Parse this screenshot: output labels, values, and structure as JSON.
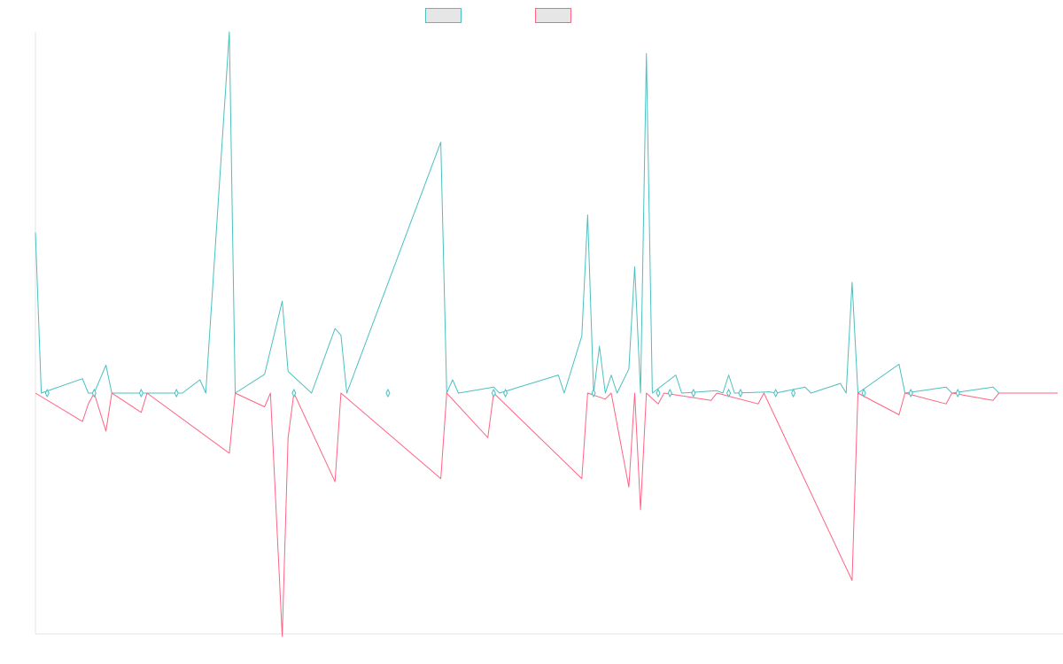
{
  "chart_data": {
    "type": "line",
    "title": "",
    "xlabel": "",
    "ylabel": "",
    "legend": {
      "placement": "top-center",
      "show_labels": false
    },
    "grid": false,
    "show_tick_labels": false,
    "x_count": 175,
    "ylim": [
      -1000,
      1500
    ],
    "series": [
      {
        "color": "#4bc0c0",
        "fill": "#e6e6e6",
        "points": [
          [
            0,
            667
          ],
          [
            1,
            0
          ],
          [
            8,
            60
          ],
          [
            9,
            0
          ],
          [
            10,
            0
          ],
          [
            12,
            116
          ],
          [
            13,
            0
          ],
          [
            19,
            0
          ],
          [
            25,
            0
          ],
          [
            28,
            55
          ],
          [
            29,
            0
          ],
          [
            33,
            1500
          ],
          [
            34,
            0
          ],
          [
            39,
            78
          ],
          [
            42,
            382
          ],
          [
            43,
            90
          ],
          [
            47,
            0
          ],
          [
            51,
            268
          ],
          [
            52,
            240
          ],
          [
            53,
            0
          ],
          [
            69,
            1042
          ],
          [
            70,
            0
          ],
          [
            71,
            55
          ],
          [
            72,
            0
          ],
          [
            78,
            25
          ],
          [
            79,
            0
          ],
          [
            89,
            75
          ],
          [
            90,
            0
          ],
          [
            93,
            237
          ],
          [
            94,
            740
          ],
          [
            95,
            0
          ],
          [
            96,
            195
          ],
          [
            97,
            0
          ],
          [
            98,
            75
          ],
          [
            99,
            0
          ],
          [
            101,
            100
          ],
          [
            102,
            525
          ],
          [
            103,
            0
          ],
          [
            104,
            1410
          ],
          [
            105,
            0
          ],
          [
            109,
            75
          ],
          [
            110,
            0
          ],
          [
            116,
            10
          ],
          [
            117,
            0
          ],
          [
            118,
            75
          ],
          [
            119,
            0
          ],
          [
            125,
            5
          ],
          [
            126,
            0
          ],
          [
            131,
            25
          ],
          [
            132,
            0
          ],
          [
            137,
            40
          ],
          [
            138,
            0
          ],
          [
            139,
            460
          ],
          [
            140,
            0
          ],
          [
            147,
            120
          ],
          [
            148,
            0
          ],
          [
            155,
            25
          ],
          [
            156,
            0
          ],
          [
            163,
            25
          ],
          [
            164,
            0
          ],
          [
            174,
            0
          ]
        ]
      },
      {
        "color": "#ff6384",
        "fill": "#e6e6e6",
        "points": [
          [
            0,
            0
          ],
          [
            8,
            -118
          ],
          [
            9,
            -45
          ],
          [
            10,
            0
          ],
          [
            12,
            -158
          ],
          [
            13,
            0
          ],
          [
            18,
            -80
          ],
          [
            19,
            0
          ],
          [
            33,
            -250
          ],
          [
            34,
            0
          ],
          [
            39,
            -57
          ],
          [
            40,
            0
          ],
          [
            42,
            -1010
          ],
          [
            43,
            -185
          ],
          [
            44,
            0
          ],
          [
            51,
            -368
          ],
          [
            52,
            0
          ],
          [
            69,
            -355
          ],
          [
            70,
            0
          ],
          [
            77,
            -185
          ],
          [
            78,
            0
          ],
          [
            93,
            -355
          ],
          [
            94,
            0
          ],
          [
            97,
            -25
          ],
          [
            98,
            0
          ],
          [
            101,
            -390
          ],
          [
            102,
            0
          ],
          [
            103,
            -485
          ],
          [
            104,
            0
          ],
          [
            106,
            -45
          ],
          [
            107,
            0
          ],
          [
            115,
            -30
          ],
          [
            116,
            0
          ],
          [
            123,
            -45
          ],
          [
            124,
            0
          ],
          [
            139,
            -778
          ],
          [
            140,
            0
          ],
          [
            147,
            -90
          ],
          [
            148,
            0
          ],
          [
            155,
            -45
          ],
          [
            156,
            0
          ],
          [
            163,
            -30
          ],
          [
            164,
            0
          ],
          [
            174,
            0
          ]
        ]
      }
    ]
  }
}
